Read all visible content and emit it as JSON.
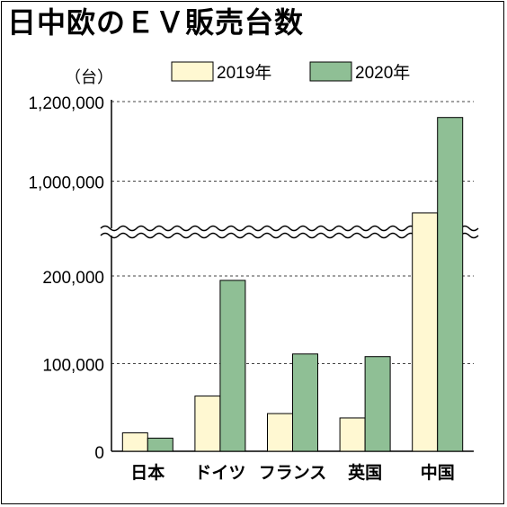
{
  "title": "日中欧のＥＶ販売台数",
  "colors": {
    "series_2019": "#fff8d2",
    "series_2020": "#8fbf95",
    "grid": "#444444"
  },
  "chart_data": {
    "type": "bar",
    "title": "日中欧のＥＶ販売台数",
    "unit_label": "（台）",
    "categories": [
      "日本",
      "ドイツ",
      "フランス",
      "英国",
      "中国"
    ],
    "series": [
      {
        "name": "2019年",
        "values": [
          21000,
          63000,
          43000,
          38000,
          920000
        ]
      },
      {
        "name": "2020年",
        "values": [
          15000,
          195000,
          111000,
          108000,
          1160000
        ]
      }
    ],
    "y_ticks": [
      "0",
      "100,000",
      "200,000",
      "1,000,000",
      "1,200,000"
    ],
    "axis_break": {
      "lower_max": 200000,
      "upper_min": 800000
    },
    "ylim": [
      0,
      1200000
    ],
    "grid": true,
    "legend_position": "top-right"
  }
}
